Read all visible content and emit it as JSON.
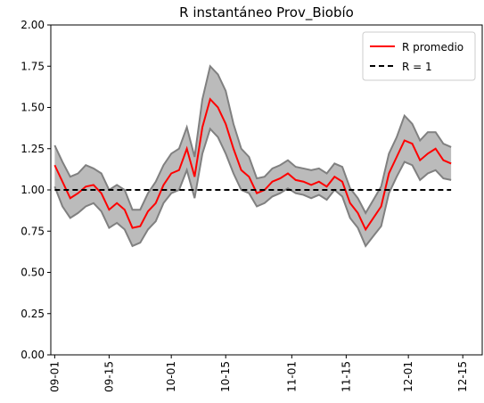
{
  "chart_data": {
    "type": "line",
    "title": "R instantáneo Prov_Biobío",
    "x": [
      "09-01",
      "09-03",
      "09-05",
      "09-07",
      "09-09",
      "09-11",
      "09-13",
      "09-15",
      "09-17",
      "09-19",
      "09-21",
      "09-23",
      "09-25",
      "09-27",
      "09-29",
      "10-01",
      "10-03",
      "10-05",
      "10-07",
      "10-09",
      "10-11",
      "10-13",
      "10-15",
      "10-17",
      "10-19",
      "10-21",
      "10-23",
      "10-25",
      "10-27",
      "10-29",
      "10-31",
      "11-02",
      "11-04",
      "11-06",
      "11-08",
      "11-10",
      "11-12",
      "11-14",
      "11-16",
      "11-18",
      "11-20",
      "11-22",
      "11-24",
      "11-26",
      "11-28",
      "11-30",
      "12-02",
      "12-04",
      "12-06",
      "12-08",
      "12-10",
      "12-12"
    ],
    "series": [
      {
        "name": "R promedio",
        "color": "#ff0000",
        "values": [
          1.15,
          1.05,
          0.95,
          0.98,
          1.02,
          1.03,
          0.98,
          0.88,
          0.92,
          0.88,
          0.77,
          0.78,
          0.87,
          0.92,
          1.03,
          1.1,
          1.12,
          1.25,
          1.08,
          1.38,
          1.55,
          1.5,
          1.4,
          1.25,
          1.12,
          1.08,
          0.98,
          1.0,
          1.05,
          1.07,
          1.1,
          1.06,
          1.05,
          1.03,
          1.05,
          1.02,
          1.08,
          1.05,
          0.92,
          0.86,
          0.76,
          0.83,
          0.9,
          1.1,
          1.2,
          1.3,
          1.28,
          1.18,
          1.22,
          1.25,
          1.18,
          1.16
        ]
      }
    ],
    "band": {
      "color": "#bbbbbb",
      "edge_color": "#808080",
      "upper": [
        1.27,
        1.17,
        1.08,
        1.1,
        1.15,
        1.13,
        1.1,
        1.0,
        1.03,
        1.0,
        0.88,
        0.88,
        0.98,
        1.05,
        1.15,
        1.22,
        1.25,
        1.38,
        1.2,
        1.55,
        1.75,
        1.7,
        1.6,
        1.4,
        1.25,
        1.2,
        1.07,
        1.08,
        1.13,
        1.15,
        1.18,
        1.14,
        1.13,
        1.12,
        1.13,
        1.1,
        1.16,
        1.14,
        1.01,
        0.95,
        0.86,
        0.94,
        1.02,
        1.22,
        1.32,
        1.45,
        1.4,
        1.3,
        1.35,
        1.35,
        1.28,
        1.26
      ],
      "lower": [
        1.02,
        0.9,
        0.83,
        0.86,
        0.9,
        0.92,
        0.87,
        0.77,
        0.8,
        0.76,
        0.66,
        0.68,
        0.76,
        0.81,
        0.92,
        0.98,
        1.0,
        1.12,
        0.95,
        1.22,
        1.37,
        1.32,
        1.22,
        1.1,
        1.0,
        0.98,
        0.9,
        0.92,
        0.96,
        0.98,
        1.01,
        0.98,
        0.97,
        0.95,
        0.97,
        0.94,
        1.0,
        0.96,
        0.83,
        0.77,
        0.66,
        0.72,
        0.78,
        0.98,
        1.08,
        1.17,
        1.15,
        1.06,
        1.1,
        1.12,
        1.07,
        1.06
      ]
    },
    "reference": {
      "name": "R = 1",
      "value": 1,
      "color": "#000000"
    },
    "xlim": [
      "08-31",
      "12-20"
    ],
    "xticks": [
      "09-01",
      "09-15",
      "10-01",
      "10-15",
      "11-01",
      "11-15",
      "12-01",
      "12-15"
    ],
    "ylim": [
      0,
      2
    ],
    "yticks": [
      {
        "value": 0,
        "label": "0.00"
      },
      {
        "value": 0.25,
        "label": "0.25"
      },
      {
        "value": 0.5,
        "label": "0.50"
      },
      {
        "value": 0.75,
        "label": "0.75"
      },
      {
        "value": 1,
        "label": "1.00"
      },
      {
        "value": 1.25,
        "label": "1.25"
      },
      {
        "value": 1.5,
        "label": "1.50"
      },
      {
        "value": 1.75,
        "label": "1.75"
      },
      {
        "value": 2,
        "label": "2.00"
      }
    ],
    "grid": false,
    "legend": "upper right"
  }
}
